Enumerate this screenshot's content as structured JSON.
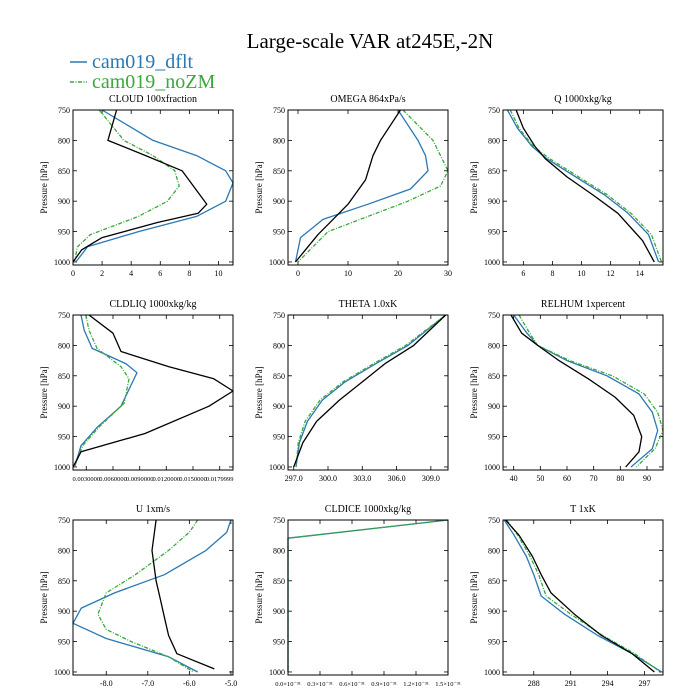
{
  "title": "Large-scale VAR at245E,-2N",
  "legend": [
    {
      "name": "cam019_dflt",
      "color": "#2a78b4",
      "dash": "none"
    },
    {
      "name": "cam019_noZM",
      "color": "#3aa83a",
      "dash": "4,1.5,1,1.5"
    }
  ],
  "ref_color": "#000000",
  "chart_data": [
    {
      "type": "line",
      "title": "CLOUD  100xfraction",
      "ylabel": "Pressure [hPa]",
      "xlim": [
        0,
        11
      ],
      "ylim": [
        750,
        1005
      ],
      "xticks": [
        0,
        2,
        4,
        6,
        8,
        10
      ],
      "xtick_labels": [
        "0",
        "2",
        "4",
        "6",
        "8",
        "10"
      ],
      "yticks": [
        750,
        800,
        850,
        900,
        950,
        1000
      ],
      "ytick_labels": [
        "750",
        "800",
        "850",
        "900",
        "950",
        "1000"
      ],
      "series": [
        {
          "name": "cam019_dflt",
          "x": [
            2.0,
            5.5,
            8.5,
            10.5,
            11.0,
            10.5,
            8.5,
            4.5,
            1.0,
            0.2
          ],
          "y": [
            750,
            800,
            825,
            850,
            870,
            900,
            925,
            950,
            975,
            1000
          ]
        },
        {
          "name": "cam019_noZM",
          "x": [
            1.8,
            3.5,
            5.5,
            7.0,
            7.3,
            6.5,
            4.5,
            1.2,
            0.3,
            0.1
          ],
          "y": [
            750,
            800,
            825,
            850,
            875,
            900,
            925,
            955,
            975,
            1000
          ]
        },
        {
          "name": "REF",
          "x": [
            3.0,
            2.4,
            5.0,
            7.5,
            9.2,
            8.6,
            5.8,
            2.0,
            0.6,
            0.0
          ],
          "y": [
            750,
            800,
            825,
            850,
            905,
            920,
            935,
            960,
            980,
            1000
          ]
        }
      ]
    },
    {
      "type": "line",
      "title": "OMEGA  864xPa/s",
      "ylabel": "Pressure [hPa]",
      "xlim": [
        -2,
        30
      ],
      "ylim": [
        750,
        1005
      ],
      "xticks": [
        0,
        10,
        20,
        30
      ],
      "xtick_labels": [
        "0",
        "10",
        "20",
        "30"
      ],
      "yticks": [
        750,
        800,
        850,
        900,
        950,
        1000
      ],
      "ytick_labels": [
        "750",
        "800",
        "850",
        "900",
        "950",
        "1000"
      ],
      "series": [
        {
          "name": "cam019_dflt",
          "x": [
            20,
            22,
            24,
            25.5,
            26,
            22.5,
            14,
            5,
            0.5,
            -0.5
          ],
          "y": [
            750,
            775,
            800,
            825,
            850,
            880,
            905,
            930,
            960,
            1000
          ]
        },
        {
          "name": "cam019_noZM",
          "x": [
            21,
            24,
            27,
            28.5,
            30,
            28.5,
            22,
            14,
            6,
            0
          ],
          "y": [
            750,
            775,
            800,
            825,
            850,
            875,
            900,
            925,
            950,
            1000
          ]
        },
        {
          "name": "REF",
          "x": [
            20.5,
            18.5,
            16.5,
            15,
            13.5,
            10,
            7,
            4,
            1.5,
            -0.5
          ],
          "y": [
            750,
            775,
            800,
            825,
            865,
            905,
            930,
            955,
            980,
            1000
          ]
        }
      ]
    },
    {
      "type": "line",
      "title": "Q  1000xkg/kg",
      "ylabel": "Pressure [hPa]",
      "xlim": [
        4.6,
        15.6
      ],
      "ylim": [
        750,
        1005
      ],
      "xticks": [
        6,
        8,
        10,
        12,
        14
      ],
      "xtick_labels": [
        "6",
        "8",
        "10",
        "12",
        "14"
      ],
      "yticks": [
        750,
        800,
        850,
        900,
        950,
        1000
      ],
      "ytick_labels": [
        "750",
        "800",
        "850",
        "900",
        "950",
        "1000"
      ],
      "series": [
        {
          "name": "cam019_dflt",
          "x": [
            4.9,
            5.6,
            6.6,
            7.6,
            9.6,
            11.6,
            13.2,
            14.6,
            15.3
          ],
          "y": [
            750,
            780,
            810,
            830,
            860,
            890,
            920,
            955,
            1000
          ]
        },
        {
          "name": "cam019_noZM",
          "x": [
            5.1,
            5.7,
            6.7,
            7.8,
            9.8,
            11.8,
            13.4,
            14.8,
            15.5
          ],
          "y": [
            750,
            780,
            810,
            830,
            860,
            890,
            920,
            955,
            1000
          ]
        },
        {
          "name": "REF",
          "x": [
            5.5,
            6.0,
            6.8,
            7.5,
            9.0,
            10.8,
            12.5,
            14.2,
            15.0
          ],
          "y": [
            750,
            780,
            810,
            830,
            860,
            890,
            920,
            965,
            1000
          ]
        }
      ]
    },
    {
      "type": "line",
      "title": "CLDLIQ  1000xkg/kg",
      "ylabel": "Pressure [hPa]",
      "xlim": [
        0,
        1
      ],
      "ylim": [
        750,
        1005
      ],
      "xticks": [
        0.083,
        0.25,
        0.417,
        0.583,
        0.75,
        0.917
      ],
      "xtick_labels": [
        "0.0030000",
        "0.0060000",
        "0.0090000",
        "0.0120000",
        "0.0150000",
        "0.0179999"
      ],
      "yticks": [
        750,
        800,
        850,
        900,
        950,
        1000
      ],
      "ytick_labels": [
        "750",
        "800",
        "850",
        "900",
        "950",
        "1000"
      ],
      "series": [
        {
          "name": "cam019_dflt",
          "x": [
            0.05,
            0.07,
            0.12,
            0.33,
            0.4,
            0.3,
            0.15,
            0.05,
            0.01
          ],
          "y": [
            750,
            775,
            805,
            830,
            845,
            900,
            935,
            965,
            1000
          ]
        },
        {
          "name": "cam019_noZM",
          "x": [
            0.08,
            0.1,
            0.15,
            0.3,
            0.35,
            0.32,
            0.16,
            0.06,
            0.01
          ],
          "y": [
            750,
            775,
            805,
            835,
            855,
            895,
            935,
            965,
            1000
          ]
        },
        {
          "name": "REF",
          "x": [
            0.1,
            0.25,
            0.3,
            0.6,
            0.88,
            1.0,
            0.85,
            0.45,
            0.05,
            0.0
          ],
          "y": [
            750,
            780,
            810,
            835,
            855,
            875,
            900,
            945,
            975,
            1000
          ]
        }
      ]
    },
    {
      "type": "line",
      "title": "THETA  1.0xK",
      "ylabel": "Pressure [hPa]",
      "xlim": [
        296.5,
        310.5
      ],
      "ylim": [
        750,
        1005
      ],
      "xticks": [
        297,
        300,
        303,
        306,
        309
      ],
      "xtick_labels": [
        "297.0",
        "300.0",
        "303.0",
        "306.0",
        "309.0"
      ],
      "yticks": [
        750,
        800,
        850,
        900,
        950,
        1000
      ],
      "ytick_labels": [
        "750",
        "800",
        "850",
        "900",
        "950",
        "1000"
      ],
      "series": [
        {
          "name": "cam019_dflt",
          "x": [
            310.3,
            307.0,
            304.2,
            301.5,
            299.5,
            298.2,
            297.5,
            297.2
          ],
          "y": [
            750,
            800,
            830,
            860,
            890,
            925,
            960,
            1000
          ]
        },
        {
          "name": "cam019_noZM",
          "x": [
            310.3,
            306.8,
            304.0,
            301.3,
            299.3,
            298.0,
            297.4,
            297.2
          ],
          "y": [
            750,
            800,
            830,
            860,
            890,
            925,
            960,
            1000
          ]
        },
        {
          "name": "REF",
          "x": [
            310.3,
            307.5,
            305.0,
            303.0,
            301.0,
            299.0,
            297.8,
            297.0
          ],
          "y": [
            750,
            800,
            830,
            860,
            890,
            925,
            960,
            1000
          ]
        }
      ]
    },
    {
      "type": "line",
      "title": "RELHUM  1xpercent",
      "ylabel": "Pressure [hPa]",
      "xlim": [
        36,
        96
      ],
      "ylim": [
        750,
        1005
      ],
      "xticks": [
        40,
        50,
        60,
        70,
        80,
        90
      ],
      "xtick_labels": [
        "40",
        "50",
        "60",
        "70",
        "80",
        "90"
      ],
      "yticks": [
        750,
        800,
        850,
        900,
        950,
        1000
      ],
      "ytick_labels": [
        "750",
        "800",
        "850",
        "900",
        "950",
        "1000"
      ],
      "series": [
        {
          "name": "cam019_dflt",
          "x": [
            40,
            45,
            49,
            60,
            75,
            87,
            92,
            94,
            92,
            84
          ],
          "y": [
            750,
            780,
            800,
            825,
            850,
            880,
            910,
            940,
            970,
            1000
          ]
        },
        {
          "name": "cam019_noZM",
          "x": [
            42,
            46,
            49,
            61,
            77,
            89,
            94,
            96,
            93,
            86
          ],
          "y": [
            750,
            780,
            800,
            825,
            850,
            880,
            910,
            940,
            970,
            1000
          ]
        },
        {
          "name": "REF",
          "x": [
            39,
            43,
            49,
            57,
            68,
            78,
            85,
            88,
            87,
            82
          ],
          "y": [
            750,
            780,
            800,
            825,
            855,
            885,
            915,
            950,
            975,
            1000
          ]
        }
      ]
    },
    {
      "type": "line",
      "title": "U  1xm/s",
      "ylabel": "Pressure [hPa]",
      "xlim": [
        -8.8,
        -4.95
      ],
      "ylim": [
        750,
        1005
      ],
      "xticks": [
        -8,
        -7,
        -6,
        -5
      ],
      "xtick_labels": [
        "-8.0",
        "-7.0",
        "-6.0",
        "-5.0"
      ],
      "yticks": [
        750,
        800,
        850,
        900,
        950,
        1000
      ],
      "ytick_labels": [
        "750",
        "800",
        "850",
        "900",
        "950",
        "1000"
      ],
      "series": [
        {
          "name": "cam019_dflt",
          "x": [
            -5.0,
            -5.1,
            -5.6,
            -6.6,
            -7.8,
            -8.6,
            -8.8,
            -8.0,
            -6.5,
            -5.8
          ],
          "y": [
            750,
            770,
            800,
            840,
            870,
            895,
            920,
            945,
            975,
            1000
          ]
        },
        {
          "name": "cam019_noZM",
          "x": [
            -5.8,
            -6.0,
            -6.5,
            -7.3,
            -8.0,
            -8.2,
            -8.0,
            -7.4,
            -6.5,
            -5.9
          ],
          "y": [
            750,
            770,
            800,
            840,
            870,
            905,
            930,
            950,
            975,
            1000
          ]
        },
        {
          "name": "REF",
          "x": [
            -6.8,
            -6.9,
            -6.8,
            -6.7,
            -6.6,
            -6.5,
            -6.3,
            -5.4
          ],
          "y": [
            750,
            800,
            850,
            880,
            910,
            940,
            970,
            995
          ]
        }
      ]
    },
    {
      "type": "line",
      "title": "CLDICE  1000xkg/kg",
      "ylabel": "Pressure [hPa]",
      "xlim": [
        0,
        1.5e-31
      ],
      "ylim": [
        750,
        1005
      ],
      "xticks": [
        0,
        3e-32,
        6e-32,
        9e-32,
        1.2e-31,
        1.5e-31
      ],
      "xtick_labels": [
        "0.0×10⁻³¹",
        "0.3×10⁻³¹",
        "0.6×10⁻³¹",
        "0.9×10⁻³¹",
        "1.2×10⁻³¹",
        "1.5×10⁻³¹"
      ],
      "yticks": [
        750,
        800,
        850,
        900,
        950,
        1000
      ],
      "ytick_labels": [
        "750",
        "800",
        "850",
        "900",
        "950",
        "1000"
      ],
      "series": [
        {
          "name": "cam019_dflt",
          "x": [
            1.5e-31,
            0,
            0
          ],
          "y": [
            750,
            780,
            1000
          ]
        },
        {
          "name": "cam019_noZM",
          "x": [
            1.5e-31,
            0,
            0
          ],
          "y": [
            750,
            780,
            1000
          ]
        }
      ]
    },
    {
      "type": "line",
      "title": "T  1xK",
      "ylabel": "Pressure [hPa]",
      "xlim": [
        285.5,
        298.5
      ],
      "ylim": [
        750,
        1005
      ],
      "xticks": [
        288,
        291,
        294,
        297
      ],
      "xtick_labels": [
        "288",
        "291",
        "294",
        "297"
      ],
      "yticks": [
        750,
        800,
        850,
        900,
        950,
        1000
      ],
      "ytick_labels": [
        "750",
        "800",
        "850",
        "900",
        "950",
        "1000"
      ],
      "series": [
        {
          "name": "cam019_dflt",
          "x": [
            285.6,
            286.4,
            287.4,
            288.0,
            288.6,
            290.5,
            293.2,
            296.0,
            298.4
          ],
          "y": [
            750,
            775,
            810,
            840,
            875,
            905,
            940,
            970,
            1000
          ]
        },
        {
          "name": "cam019_noZM",
          "x": [
            285.8,
            286.7,
            287.7,
            288.4,
            289.0,
            291.0,
            293.6,
            296.2,
            298.3
          ],
          "y": [
            750,
            775,
            810,
            840,
            875,
            905,
            940,
            970,
            1000
          ]
        },
        {
          "name": "REF",
          "x": [
            285.7,
            286.8,
            287.9,
            288.6,
            289.4,
            291.3,
            293.5,
            296.0,
            297.8
          ],
          "y": [
            750,
            775,
            810,
            840,
            870,
            905,
            940,
            970,
            1000
          ]
        }
      ]
    }
  ]
}
